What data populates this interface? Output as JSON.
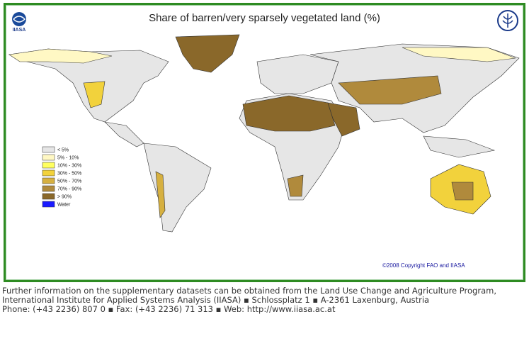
{
  "title": "Share of barren/very sparsely vegetated land (%)",
  "logo_left": "IIASA",
  "copyright": "©2008 Copyright FAO and IIASA",
  "legend": [
    {
      "label": "< 5%",
      "color": "#e6e6e6"
    },
    {
      "label": "5% - 10%",
      "color": "#fff8c4"
    },
    {
      "label": "10% - 30%",
      "color": "#ffff60"
    },
    {
      "label": "30% - 50%",
      "color": "#f2d23c"
    },
    {
      "label": "50% - 70%",
      "color": "#d6b040"
    },
    {
      "label": "70% - 90%",
      "color": "#b08a3c"
    },
    {
      "label": "> 90%",
      "color": "#8a682a"
    },
    {
      "label": "Water",
      "color": "#1a1aff"
    }
  ],
  "footer": [
    "Further information on the supplementary datasets can be obtained from the Land Use Change and Agriculture Program,",
    "International Institute for Applied Systems Analysis (IIASA) ▪ Schlossplatz 1 ▪ A-2361 Laxenburg, Austria",
    "Phone: (+43 2236) 807 0 ▪ Fax: (+43 2236) 71 313 ▪ Web: http://www.iiasa.ac.at"
  ]
}
